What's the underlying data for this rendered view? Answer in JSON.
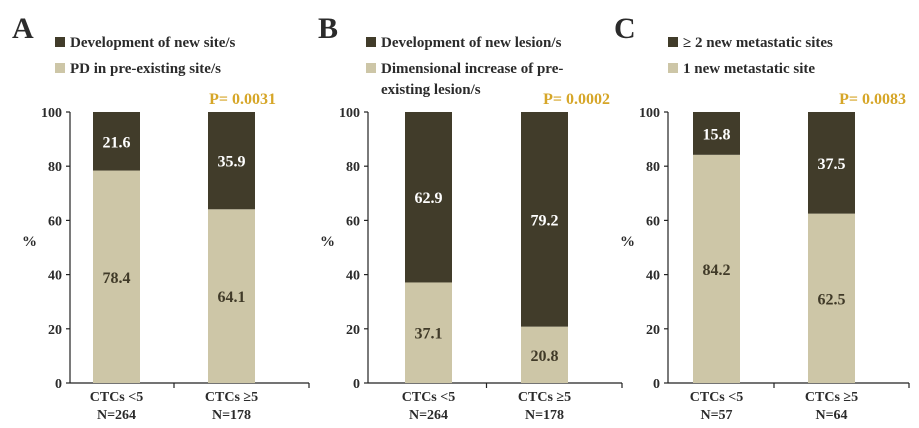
{
  "colors": {
    "dark": "#413c2a",
    "light": "#cdc6a7",
    "pvalue": "#d6a628",
    "axis": "#222222",
    "text": "#2b2b2b",
    "label_on_dark": "#ffffff",
    "label_on_light": "#403a28"
  },
  "chart_data": [
    {
      "type": "bar",
      "stacked": true,
      "panel_label": "A",
      "ylabel": "%",
      "ylim": [
        0,
        100
      ],
      "yticks": [
        "0",
        "20",
        "40",
        "60",
        "80",
        "100"
      ],
      "p_value": "P= 0.0031",
      "categories": [
        {
          "line1": "CTCs <5",
          "line2": "N=264"
        },
        {
          "line1": "CTCs ≥5",
          "line2": "N=178"
        }
      ],
      "series": [
        {
          "name": "PD in pre-existing site/s",
          "shade": "light",
          "values": [
            78.4,
            64.1
          ],
          "labels": [
            "78.4",
            "64.1"
          ]
        },
        {
          "name": "Development of new site/s",
          "shade": "dark",
          "values": [
            21.6,
            35.9
          ],
          "labels": [
            "21.6",
            "35.9"
          ]
        }
      ],
      "legend": [
        {
          "lines": [
            "Development of new site/s"
          ],
          "shade": "dark"
        },
        {
          "lines": [
            "PD in pre-existing site/s"
          ],
          "shade": "light"
        }
      ]
    },
    {
      "type": "bar",
      "stacked": true,
      "panel_label": "B",
      "ylabel": "%",
      "ylim": [
        0,
        100
      ],
      "yticks": [
        "0",
        "20",
        "40",
        "60",
        "80",
        "100"
      ],
      "p_value": "P= 0.0002",
      "categories": [
        {
          "line1": "CTCs <5",
          "line2": "N=264"
        },
        {
          "line1": "CTCs ≥5",
          "line2": "N=178"
        }
      ],
      "series": [
        {
          "name": "Dimensional increase of pre-existing lesion/s",
          "shade": "light",
          "values": [
            37.1,
            20.8
          ],
          "labels": [
            "37.1",
            "20.8"
          ]
        },
        {
          "name": "Development of new lesion/s",
          "shade": "dark",
          "values": [
            62.9,
            79.2
          ],
          "labels": [
            "62.9",
            "79.2"
          ]
        }
      ],
      "legend": [
        {
          "lines": [
            "Development of new lesion/s"
          ],
          "shade": "dark"
        },
        {
          "lines": [
            "Dimensional increase of pre-",
            "existing lesion/s"
          ],
          "shade": "light"
        }
      ]
    },
    {
      "type": "bar",
      "stacked": true,
      "panel_label": "C",
      "ylabel": "%",
      "ylim": [
        0,
        100
      ],
      "yticks": [
        "0",
        "20",
        "40",
        "60",
        "80",
        "100"
      ],
      "p_value": "P= 0.0083",
      "categories": [
        {
          "line1": "CTCs <5",
          "line2": "N=57"
        },
        {
          "line1": "CTCs ≥5",
          "line2": "N=64"
        }
      ],
      "series": [
        {
          "name": "1 new metastatic site",
          "shade": "light",
          "values": [
            84.2,
            62.5
          ],
          "labels": [
            "84.2",
            "62.5"
          ]
        },
        {
          "name": "≥ 2 new metastatic sites",
          "shade": "dark",
          "values": [
            15.8,
            37.5
          ],
          "labels": [
            "15.8",
            "37.5"
          ]
        }
      ],
      "legend": [
        {
          "lines": [
            "≥ 2 new metastatic sites"
          ],
          "shade": "dark"
        },
        {
          "lines": [
            "1 new metastatic site"
          ],
          "shade": "light"
        }
      ]
    }
  ]
}
